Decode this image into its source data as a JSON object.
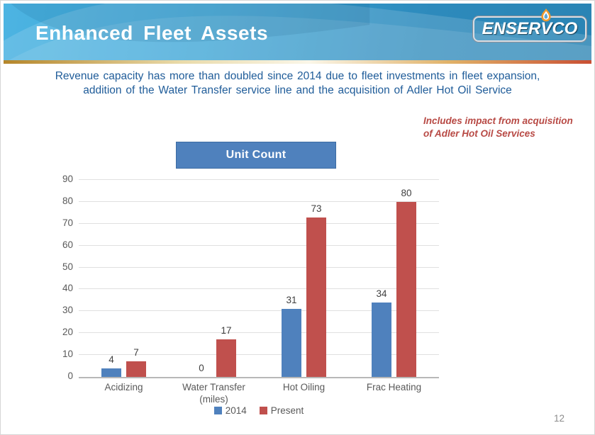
{
  "slide": {
    "title": "Enhanced Fleet Assets",
    "page_number": "12"
  },
  "logo": {
    "text_left": "ENSER",
    "text_v": "V",
    "text_right": "CO"
  },
  "subtitle": {
    "line1": "Revenue capacity has more than doubled since 2014 due to fleet investments in fleet expansion,",
    "line2": "addition of the Water Transfer service line and the acquisition of Adler Hot Oil Service"
  },
  "note": {
    "line1": "Includes impact from acquisition",
    "line2": "of Adler Hot Oil Services"
  },
  "chart_data": {
    "type": "bar",
    "title": "Unit Count",
    "categories": [
      "Acidizing",
      "Water Transfer\n(miles)",
      "Hot Oiling",
      "Frac Heating"
    ],
    "series": [
      {
        "name": "2014",
        "color": "#4f81bd",
        "values": [
          4,
          0,
          31,
          34
        ]
      },
      {
        "name": "Present",
        "color": "#c0504d",
        "values": [
          7,
          17,
          73,
          80
        ]
      }
    ],
    "ylim": [
      0,
      90
    ],
    "ytick_step": 10,
    "grid": true,
    "legend_position": "bottom"
  },
  "colors": {
    "header_blue_light": "#4db4e2",
    "header_blue_dark": "#2d8abc",
    "gold_line_left": "#b5862b",
    "gold_line_right": "#c94f33",
    "title_box_blue": "#4f81bd",
    "note_red": "#b84a45",
    "subtitle_blue": "#1f5c99",
    "axis_text_gray": "#595959",
    "logo_navy": "#1d3f77"
  }
}
